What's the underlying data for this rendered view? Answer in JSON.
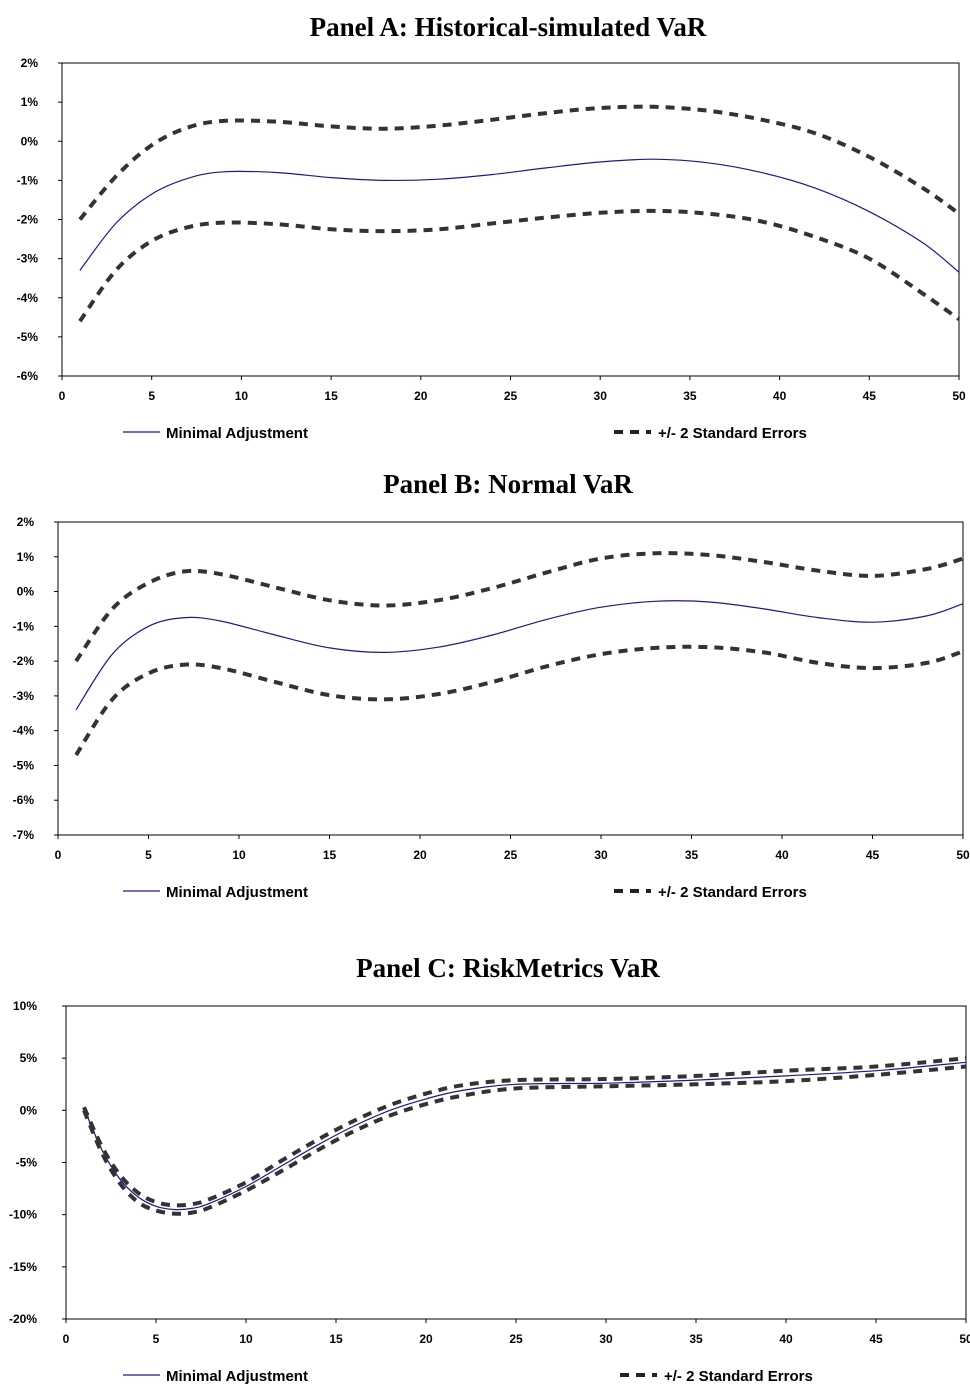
{
  "chart_data": [
    {
      "type": "line",
      "title": "Panel A: Historical-simulated VaR",
      "xlim": [
        0,
        50
      ],
      "ylim": [
        -6,
        2
      ],
      "xticks": [
        "0",
        "5",
        "10",
        "15",
        "20",
        "25",
        "30",
        "35",
        "40",
        "45",
        "50"
      ],
      "yticks": [
        "2%",
        "1%",
        "0%",
        "-1%",
        "-2%",
        "-3%",
        "-4%",
        "-5%",
        "-6%"
      ],
      "grid": false,
      "legend": "bottom",
      "series": [
        {
          "name": "Minimal Adjustment",
          "style": "solid",
          "color": "#1a1a8c",
          "x": [
            1,
            3,
            5,
            7,
            9,
            12,
            15,
            18,
            21,
            24,
            27,
            30,
            33,
            36,
            39,
            42,
            45,
            48,
            50
          ],
          "y": [
            -3.3,
            -2.1,
            -1.35,
            -0.95,
            -0.78,
            -0.8,
            -0.93,
            -1.0,
            -0.97,
            -0.85,
            -0.68,
            -0.53,
            -0.46,
            -0.55,
            -0.8,
            -1.2,
            -1.8,
            -2.6,
            -3.35
          ]
        },
        {
          "name": "+/- 2 Standard Errors",
          "style": "dashed",
          "color": "#333333",
          "x": [
            1,
            3,
            5,
            7,
            9,
            12,
            15,
            18,
            21,
            24,
            27,
            30,
            33,
            36,
            39,
            42,
            45,
            48,
            50
          ],
          "y": [
            -2.0,
            -0.9,
            -0.1,
            0.35,
            0.52,
            0.5,
            0.38,
            0.32,
            0.4,
            0.55,
            0.72,
            0.85,
            0.88,
            0.78,
            0.55,
            0.2,
            -0.4,
            -1.2,
            -1.85
          ]
        },
        {
          "name": "+/- 2 Standard Errors",
          "style": "dashed",
          "color": "#333333",
          "x": [
            1,
            3,
            5,
            7,
            9,
            12,
            15,
            18,
            21,
            24,
            27,
            30,
            33,
            36,
            39,
            42,
            45,
            48,
            50
          ],
          "y": [
            -4.6,
            -3.3,
            -2.55,
            -2.2,
            -2.08,
            -2.12,
            -2.25,
            -2.3,
            -2.25,
            -2.1,
            -1.95,
            -1.83,
            -1.78,
            -1.85,
            -2.05,
            -2.45,
            -3.0,
            -3.9,
            -4.55
          ]
        }
      ]
    },
    {
      "type": "line",
      "title": "Panel B: Normal VaR",
      "xlim": [
        0,
        50
      ],
      "ylim": [
        -7,
        2
      ],
      "xticks": [
        "0",
        "5",
        "10",
        "15",
        "20",
        "25",
        "30",
        "35",
        "40",
        "45",
        "50"
      ],
      "yticks": [
        "2%",
        "1%",
        "0%",
        "-1%",
        "-2%",
        "-3%",
        "-4%",
        "-5%",
        "-6%",
        "-7%"
      ],
      "grid": false,
      "legend": "bottom",
      "series": [
        {
          "name": "Minimal Adjustment",
          "style": "solid",
          "color": "#1a1a8c",
          "x": [
            1,
            3,
            5,
            7,
            9,
            12,
            15,
            18,
            21,
            24,
            27,
            30,
            33,
            36,
            39,
            42,
            45,
            48,
            50
          ],
          "y": [
            -3.4,
            -1.8,
            -1.0,
            -0.75,
            -0.85,
            -1.25,
            -1.62,
            -1.75,
            -1.6,
            -1.25,
            -0.8,
            -0.45,
            -0.28,
            -0.3,
            -0.5,
            -0.75,
            -0.88,
            -0.7,
            -0.35
          ]
        },
        {
          "name": "+/- 2 Standard Errors",
          "style": "dashed",
          "color": "#333333",
          "x": [
            1,
            3,
            5,
            7,
            9,
            12,
            15,
            18,
            21,
            24,
            27,
            30,
            33,
            36,
            39,
            42,
            45,
            48,
            50
          ],
          "y": [
            -2.0,
            -0.5,
            0.25,
            0.58,
            0.5,
            0.12,
            -0.25,
            -0.4,
            -0.25,
            0.1,
            0.55,
            0.95,
            1.1,
            1.05,
            0.85,
            0.6,
            0.45,
            0.65,
            0.95
          ]
        },
        {
          "name": "+/- 2 Standard Errors",
          "style": "dashed",
          "color": "#333333",
          "x": [
            1,
            3,
            5,
            7,
            9,
            12,
            15,
            18,
            21,
            24,
            27,
            30,
            33,
            36,
            39,
            42,
            45,
            48,
            50
          ],
          "y": [
            -4.7,
            -3.1,
            -2.35,
            -2.1,
            -2.2,
            -2.6,
            -2.98,
            -3.1,
            -2.95,
            -2.6,
            -2.15,
            -1.8,
            -1.62,
            -1.6,
            -1.75,
            -2.05,
            -2.2,
            -2.05,
            -1.72
          ]
        }
      ]
    },
    {
      "type": "line",
      "title": "Panel C: RiskMetrics VaR",
      "xlim": [
        0,
        50
      ],
      "ylim": [
        -20,
        10
      ],
      "xticks": [
        "0",
        "5",
        "10",
        "15",
        "20",
        "25",
        "30",
        "35",
        "40",
        "45",
        "50"
      ],
      "yticks": [
        "10%",
        "5%",
        "0%",
        "-5%",
        "-10%",
        "-15%",
        "-20%"
      ],
      "grid": false,
      "legend": "bottom",
      "series": [
        {
          "name": "Minimal Adjustment",
          "style": "solid",
          "color": "#1a1a8c",
          "x": [
            1,
            2,
            3,
            4,
            5,
            6,
            7,
            8,
            10,
            12,
            14,
            16,
            18,
            20,
            22,
            25,
            30,
            35,
            40,
            45,
            50
          ],
          "y": [
            0.2,
            -3.8,
            -6.6,
            -8.3,
            -9.2,
            -9.5,
            -9.4,
            -8.9,
            -7.3,
            -5.3,
            -3.3,
            -1.5,
            0.0,
            1.1,
            1.9,
            2.5,
            2.6,
            2.9,
            3.3,
            3.8,
            4.6
          ]
        },
        {
          "name": "+/- 2 Standard Errors",
          "style": "dashed",
          "color": "#333333",
          "x": [
            1,
            2,
            3,
            4,
            5,
            6,
            7,
            8,
            10,
            12,
            14,
            16,
            18,
            20,
            22,
            25,
            30,
            35,
            40,
            45,
            50
          ],
          "y": [
            0.3,
            -3.5,
            -6.2,
            -7.9,
            -8.8,
            -9.1,
            -9.0,
            -8.5,
            -6.9,
            -4.8,
            -2.8,
            -1.0,
            0.5,
            1.6,
            2.4,
            2.9,
            3.0,
            3.3,
            3.8,
            4.2,
            5.0
          ]
        },
        {
          "name": "+/- 2 Standard Errors",
          "style": "dashed",
          "color": "#333333",
          "x": [
            1,
            2,
            3,
            4,
            5,
            6,
            7,
            8,
            10,
            12,
            14,
            16,
            18,
            20,
            22,
            25,
            30,
            35,
            40,
            45,
            50
          ],
          "y": [
            0.0,
            -4.1,
            -7.0,
            -8.8,
            -9.6,
            -9.9,
            -9.8,
            -9.3,
            -7.7,
            -5.8,
            -3.8,
            -2.0,
            -0.5,
            0.6,
            1.4,
            2.1,
            2.3,
            2.5,
            2.8,
            3.4,
            4.2
          ]
        }
      ]
    }
  ],
  "legend": {
    "solid_label": "Minimal Adjustment",
    "dashed_label": "+/- 2 Standard Errors"
  }
}
